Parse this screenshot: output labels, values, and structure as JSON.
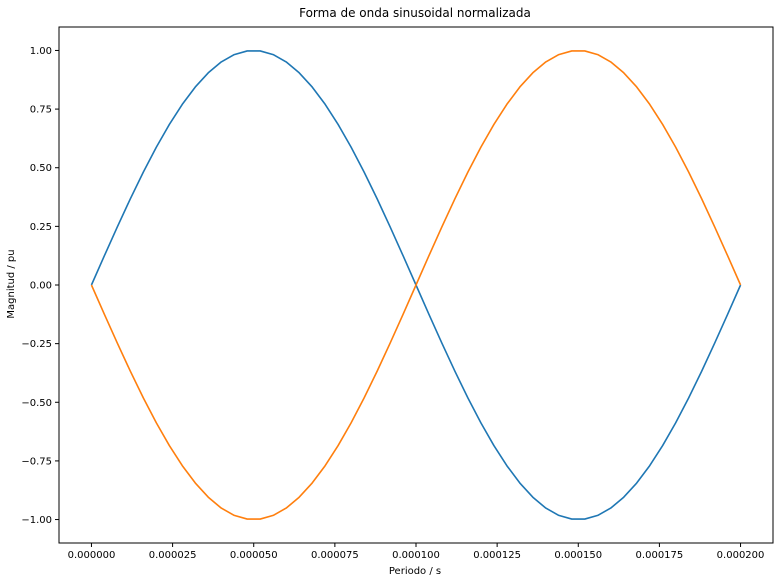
{
  "chart_data": {
    "type": "line",
    "title": "Forma de onda sinusoidal normalizada",
    "xlabel": "Periodo / s",
    "ylabel": "Magnitud / pu",
    "xlim": [
      -1e-05,
      0.00021
    ],
    "ylim": [
      -1.1,
      1.1
    ],
    "grid": false,
    "x_ticks": [
      0,
      2.5e-05,
      5e-05,
      7.5e-05,
      0.0001,
      0.000125,
      0.00015,
      0.000175,
      0.0002
    ],
    "x_tick_labels": [
      "0.000000",
      "0.000025",
      "0.000050",
      "0.000075",
      "0.000100",
      "0.000125",
      "0.000150",
      "0.000175",
      "0.000200"
    ],
    "y_ticks": [
      -1.0,
      -0.75,
      -0.5,
      -0.25,
      0.0,
      0.25,
      0.5,
      0.75,
      1.0
    ],
    "y_tick_labels": [
      "−1.00",
      "−0.75",
      "−0.50",
      "−0.25",
      "0.00",
      "0.25",
      "0.50",
      "0.75",
      "1.00"
    ],
    "x": [
      0,
      4e-06,
      8e-06,
      1.2e-05,
      1.6e-05,
      2e-05,
      2.4e-05,
      2.8e-05,
      3.2e-05,
      3.6e-05,
      4e-05,
      4.4e-05,
      4.8e-05,
      5.2e-05,
      5.6e-05,
      6e-05,
      6.4e-05,
      6.8e-05,
      7.2e-05,
      7.6e-05,
      8e-05,
      8.4e-05,
      8.8e-05,
      9.2e-05,
      9.6e-05,
      0.0001,
      0.000104,
      0.000108,
      0.000112,
      0.000116,
      0.00012,
      0.000124,
      0.000128,
      0.000132,
      0.000136,
      0.00014,
      0.000144,
      0.000148,
      0.000152,
      0.000156,
      0.00016,
      0.000164,
      0.000168,
      0.000172,
      0.000176,
      0.00018,
      0.000184,
      0.000188,
      0.000192,
      0.000196,
      0.0002
    ],
    "series": [
      {
        "color": "#1f77b4",
        "values": [
          0,
          0.1253,
          0.2487,
          0.3681,
          0.4818,
          0.5878,
          0.6845,
          0.7705,
          0.8443,
          0.9048,
          0.9511,
          0.9823,
          0.998,
          0.998,
          0.9823,
          0.9511,
          0.9048,
          0.8443,
          0.7705,
          0.6845,
          0.5878,
          0.4818,
          0.3681,
          0.2487,
          0.1253,
          0,
          -0.1253,
          -0.2487,
          -0.3681,
          -0.4818,
          -0.5878,
          -0.6845,
          -0.7705,
          -0.8443,
          -0.9048,
          -0.9511,
          -0.9823,
          -0.998,
          -0.998,
          -0.9823,
          -0.9511,
          -0.9048,
          -0.8443,
          -0.7705,
          -0.6845,
          -0.5878,
          -0.4818,
          -0.3681,
          -0.2487,
          -0.1253,
          0
        ]
      },
      {
        "color": "#ff7f0e",
        "values": [
          0,
          -0.1253,
          -0.2487,
          -0.3681,
          -0.4818,
          -0.5878,
          -0.6845,
          -0.7705,
          -0.8443,
          -0.9048,
          -0.9511,
          -0.9823,
          -0.998,
          -0.998,
          -0.9823,
          -0.9511,
          -0.9048,
          -0.8443,
          -0.7705,
          -0.6845,
          -0.5878,
          -0.4818,
          -0.3681,
          -0.2487,
          -0.1253,
          0,
          0.1253,
          0.2487,
          0.3681,
          0.4818,
          0.5878,
          0.6845,
          0.7705,
          0.8443,
          0.9048,
          0.9511,
          0.9823,
          0.998,
          0.998,
          0.9823,
          0.9511,
          0.9048,
          0.8443,
          0.7705,
          0.6845,
          0.5878,
          0.4818,
          0.3681,
          0.2487,
          0.1253,
          0
        ]
      }
    ]
  }
}
